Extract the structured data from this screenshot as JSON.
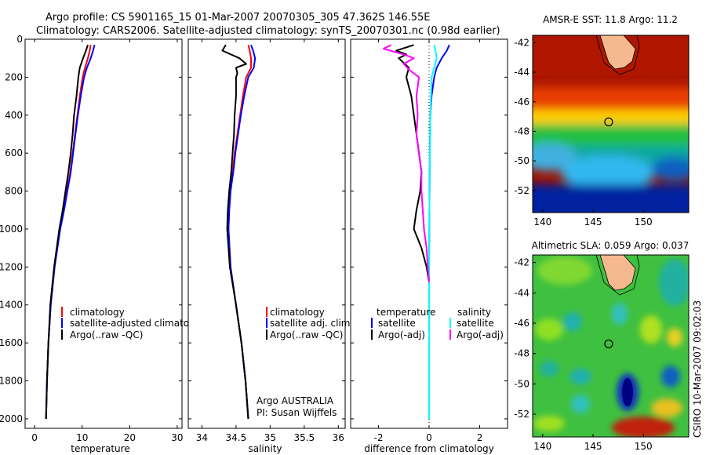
{
  "header": {
    "line1": "Argo profile: CS 5901165_15 01-Mar-2007 20070305_305 47.362S 146.55E",
    "line2": "Climatology: CARS2006. Satellite-adjusted climatology: synTS_20070301.nc (0.98d earlier)"
  },
  "side_label": "CSIRO 10-Mar-2007 09:02:03",
  "colors": {
    "climatology": "#ff0000",
    "satellite": "#0000ff",
    "argo": "#000000",
    "salinity_satellite": "#00ffff",
    "salinity_argo": "#ff00ff",
    "land": "#f5b88f"
  },
  "chart_data": [
    {
      "type": "line",
      "id": "temperature",
      "xlabel": "temperature",
      "xlim": [
        -2,
        31
      ],
      "ylim": [
        0,
        2050
      ],
      "x_ticks": [
        0,
        10,
        20,
        30
      ],
      "y_ticks": [
        0,
        200,
        400,
        600,
        800,
        1000,
        1200,
        1400,
        1600,
        1800,
        2000
      ],
      "series": [
        {
          "name": "climatology",
          "color": "#ff0000",
          "depth": [
            30,
            60,
            100,
            150,
            200,
            300,
            400,
            500,
            600,
            700,
            800,
            900,
            1000,
            1200,
            1400,
            1600,
            1800,
            2000
          ],
          "values": [
            11.8,
            11.6,
            11.2,
            10.6,
            10.1,
            9.5,
            9.0,
            8.5,
            8.0,
            7.5,
            6.8,
            6.1,
            5.3,
            4.2,
            3.4,
            2.9,
            2.6,
            2.4
          ]
        },
        {
          "name": "satellite-adjusted climatology",
          "color": "#0000ff",
          "depth": [
            30,
            60,
            100,
            150,
            200,
            300,
            400,
            500,
            600,
            700,
            800,
            900,
            1000,
            1200,
            1400,
            1600,
            1800,
            2000
          ],
          "values": [
            12.6,
            12.3,
            11.8,
            11.0,
            10.4,
            9.7,
            9.1,
            8.6,
            8.1,
            7.6,
            6.9,
            6.2,
            5.4,
            4.2,
            3.4,
            2.9,
            2.6,
            2.4
          ]
        },
        {
          "name": "Argo(..raw -QC)",
          "color": "#000000",
          "depth": [
            30,
            60,
            100,
            150,
            200,
            300,
            400,
            500,
            600,
            700,
            800,
            900,
            1000,
            1200,
            1400,
            1600,
            1800,
            2000
          ],
          "values": [
            11.2,
            10.8,
            10.2,
            9.5,
            9.2,
            8.8,
            8.3,
            8.0,
            7.6,
            7.1,
            6.5,
            5.9,
            5.2,
            4.1,
            3.3,
            2.9,
            2.6,
            2.4
          ]
        }
      ],
      "legend": [
        "climatology",
        "satellite-adjusted climatology",
        "Argo(..raw -QC)"
      ]
    },
    {
      "type": "line",
      "id": "salinity",
      "xlabel": "salinity",
      "xlim": [
        33.8,
        36.1
      ],
      "ylim": [
        0,
        2050
      ],
      "x_ticks": [
        34,
        34.5,
        35,
        35.5,
        36
      ],
      "y_ticks": [
        0,
        200,
        400,
        600,
        800,
        1000,
        1200,
        1400,
        1600,
        1800,
        2000
      ],
      "series": [
        {
          "name": "climatology",
          "color": "#ff0000",
          "depth": [
            30,
            60,
            100,
            150,
            200,
            300,
            400,
            500,
            600,
            700,
            800,
            900,
            1000,
            1200,
            1400,
            1600,
            1800,
            2000
          ],
          "values": [
            34.68,
            34.7,
            34.72,
            34.72,
            34.65,
            34.6,
            34.56,
            34.52,
            34.48,
            34.45,
            34.42,
            34.4,
            34.39,
            34.42,
            34.5,
            34.58,
            34.64,
            34.68
          ]
        },
        {
          "name": "satellite adj. clim.",
          "color": "#0000ff",
          "depth": [
            30,
            60,
            100,
            150,
            200,
            300,
            400,
            500,
            600,
            700,
            800,
            900,
            1000,
            1200,
            1400,
            1600,
            1800,
            2000
          ],
          "values": [
            34.72,
            34.75,
            34.78,
            34.76,
            34.68,
            34.62,
            34.57,
            34.53,
            34.49,
            34.46,
            34.42,
            34.4,
            34.39,
            34.42,
            34.5,
            34.58,
            34.64,
            34.68
          ]
        },
        {
          "name": "Argo(..raw -QC)",
          "color": "#000000",
          "depth": [
            30,
            60,
            100,
            130,
            150,
            180,
            200,
            300,
            400,
            500,
            600,
            700,
            800,
            900,
            1000,
            1200,
            1400,
            1600,
            1800,
            2000
          ],
          "values": [
            34.35,
            34.3,
            34.55,
            34.65,
            34.5,
            34.52,
            34.5,
            34.5,
            34.48,
            34.47,
            34.45,
            34.43,
            34.4,
            34.38,
            34.37,
            34.41,
            34.5,
            34.58,
            34.64,
            34.68
          ]
        }
      ],
      "legend": [
        "climatology",
        "satellite adj. clim.",
        "Argo(..raw -QC)"
      ],
      "annotation": [
        "Argo AUSTRALIA",
        "PI: Susan Wijffels"
      ]
    },
    {
      "type": "line",
      "id": "difference",
      "xlabel": "difference from climatology",
      "xlim": [
        -3.1,
        3.1
      ],
      "ylim": [
        0,
        2050
      ],
      "x_ticks": [
        -2,
        0,
        2
      ],
      "y_ticks": [
        0,
        200,
        400,
        600,
        800,
        1000,
        1200,
        1400,
        1600,
        1800,
        2000
      ],
      "series": [
        {
          "name": "temperature satellite",
          "color": "#0000ff",
          "depth": [
            30,
            60,
            100,
            150,
            200,
            300,
            400,
            600,
            800,
            1000,
            1200,
            1400,
            1600,
            1800,
            2000
          ],
          "values": [
            0.8,
            0.7,
            0.5,
            0.3,
            0.2,
            0.1,
            0.05,
            0.03,
            0.02,
            0.01,
            0.0,
            0.0,
            0.0,
            0.0,
            0.0
          ]
        },
        {
          "name": "temperature Argo(-adj)",
          "color": "#000000",
          "depth": [
            30,
            60,
            80,
            100,
            150,
            200,
            300,
            400,
            500,
            600,
            700,
            800,
            900,
            1000,
            1100,
            1200,
            1280
          ],
          "values": [
            -0.6,
            -1.3,
            -0.9,
            -1.2,
            -0.8,
            -0.9,
            -0.7,
            -0.6,
            -0.5,
            -0.4,
            -0.3,
            -0.35,
            -0.5,
            -0.6,
            -0.3,
            -0.1,
            0.0
          ]
        },
        {
          "name": "salinity satellite",
          "color": "#00ffff",
          "depth": [
            30,
            60,
            100,
            150,
            200,
            400,
            600,
            800,
            1000,
            1200,
            1400,
            1600,
            1800,
            2000
          ],
          "values": [
            0.2,
            0.25,
            0.3,
            0.2,
            0.1,
            0.05,
            0.03,
            0.02,
            0.01,
            0.0,
            0.0,
            0.0,
            0.0,
            0.0
          ]
        },
        {
          "name": "salinity Argo(-adj)",
          "color": "#ff00ff",
          "depth": [
            30,
            50,
            80,
            100,
            130,
            160,
            200,
            300,
            400,
            500,
            600,
            700,
            800,
            900,
            1000,
            1100,
            1200,
            1280
          ],
          "values": [
            -1.5,
            -1.8,
            -1.0,
            -0.6,
            -1.0,
            -0.8,
            -0.4,
            -0.5,
            -0.45,
            -0.5,
            -0.4,
            -0.3,
            -0.3,
            -0.25,
            -0.2,
            -0.1,
            -0.05,
            0.0
          ]
        }
      ],
      "legend_headers": [
        "temperature",
        "salinity"
      ],
      "legend_left": [
        "satellite",
        "Argo(-adj)"
      ],
      "legend_right": [
        "satellite",
        "Argo(-adj)"
      ]
    },
    {
      "type": "heatmap",
      "id": "sst_map",
      "title": "AMSR-E SST: 11.8 Argo: 11.2",
      "xlim": [
        139,
        154.5
      ],
      "ylim": [
        -53.5,
        -41.5
      ],
      "x_ticks": [
        140,
        145,
        150
      ],
      "y_ticks": [
        -42,
        -44,
        -46,
        -48,
        -50,
        -52
      ],
      "marker": {
        "lon": 146.55,
        "lat": -47.362
      }
    },
    {
      "type": "heatmap",
      "id": "sla_map",
      "title": "Altimetric SLA: 0.059 Argo: 0.037",
      "xlim": [
        139,
        154.5
      ],
      "ylim": [
        -53.5,
        -41.5
      ],
      "x_ticks": [
        140,
        145,
        150
      ],
      "y_ticks": [
        -42,
        -44,
        -46,
        -48,
        -50,
        -52
      ],
      "marker": {
        "lon": 146.55,
        "lat": -47.362
      }
    }
  ]
}
